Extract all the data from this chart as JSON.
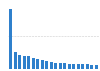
{
  "values": [
    36,
    10,
    8.5,
    8,
    7.5,
    6.5,
    5.8,
    5.2,
    4.5,
    4.0,
    3.8,
    3.5,
    3.3,
    3.1,
    3.0,
    2.9,
    2.8,
    2.7,
    2.6,
    2.5
  ],
  "bar_color": "#2f80cc",
  "background_color": "#ffffff",
  "grid_color": "#cccccc",
  "ylim": [
    0,
    40
  ],
  "ytick_values": [
    20
  ],
  "num_bars": 20
}
